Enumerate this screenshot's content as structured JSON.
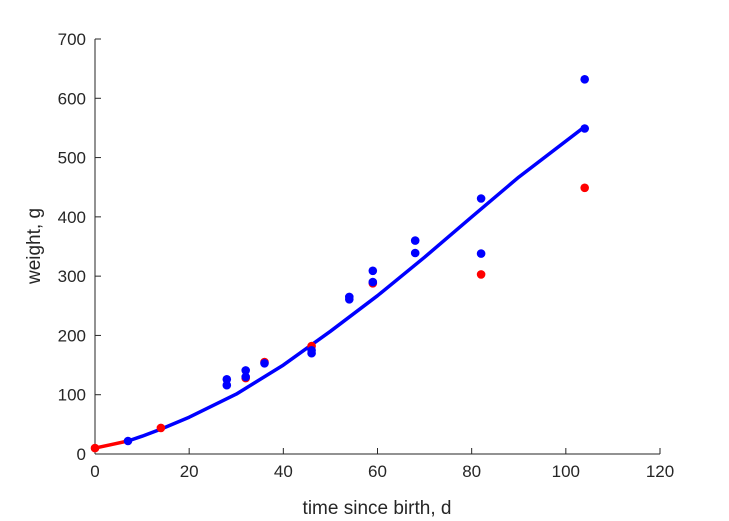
{
  "chart_data": {
    "type": "scatter",
    "title": "",
    "xlabel": "time since birth, d",
    "ylabel": "weight, g",
    "xlim": [
      0,
      120
    ],
    "ylim": [
      0,
      700
    ],
    "xticks": [
      0,
      20,
      40,
      60,
      80,
      100,
      120
    ],
    "yticks": [
      0,
      100,
      200,
      300,
      400,
      500,
      600,
      700
    ],
    "grid": false,
    "legend": "none",
    "series": [
      {
        "kind": "scatter",
        "color": "#ff0000",
        "points": [
          [
            0,
            10
          ],
          [
            14,
            44
          ],
          [
            32,
            128
          ],
          [
            36,
            155
          ],
          [
            46,
            182
          ],
          [
            59,
            288
          ],
          [
            82,
            303
          ],
          [
            104,
            449
          ]
        ]
      },
      {
        "kind": "scatter",
        "color": "#0000ff",
        "points": [
          [
            7,
            22
          ],
          [
            28,
            116
          ],
          [
            28,
            126
          ],
          [
            32,
            130
          ],
          [
            32,
            141
          ],
          [
            36,
            153
          ],
          [
            46,
            170
          ],
          [
            46,
            175
          ],
          [
            54,
            261
          ],
          [
            54,
            265
          ],
          [
            59,
            290
          ],
          [
            59,
            309
          ],
          [
            68,
            339
          ],
          [
            68,
            360
          ],
          [
            82,
            338
          ],
          [
            82,
            431
          ],
          [
            104,
            549
          ],
          [
            104,
            632
          ]
        ]
      },
      {
        "kind": "line",
        "color": "#ff0000",
        "points": [
          [
            0,
            10
          ],
          [
            3,
            15
          ],
          [
            7,
            22
          ]
        ]
      },
      {
        "kind": "line",
        "color": "#0000ff",
        "points": [
          [
            7,
            22
          ],
          [
            10,
            30
          ],
          [
            14,
            42
          ],
          [
            20,
            62
          ],
          [
            30,
            101
          ],
          [
            40,
            150
          ],
          [
            50,
            207
          ],
          [
            60,
            267
          ],
          [
            70,
            332
          ],
          [
            80,
            400
          ],
          [
            90,
            467
          ],
          [
            104,
            552
          ]
        ]
      }
    ]
  }
}
